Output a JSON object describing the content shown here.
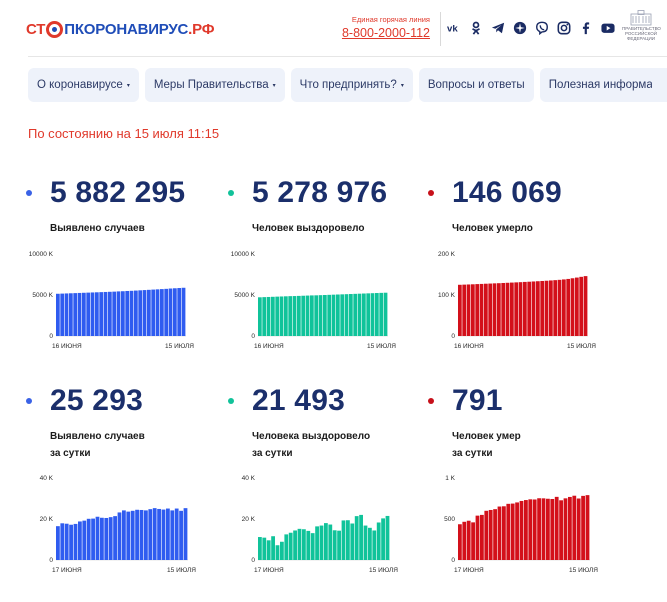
{
  "header": {
    "logo": {
      "stop": "СТ",
      "rest": "ПКОРОНАВИРУС",
      "tld": ".РФ"
    },
    "hotline_caption": "Единая горячая линия",
    "hotline_number": "8-800-2000-112",
    "socials": [
      "vk-icon",
      "odnoklassniki-icon",
      "telegram-icon",
      "yandex-zen-icon",
      "viber-icon",
      "instagram-icon",
      "facebook-icon",
      "youtube-icon"
    ],
    "gov_caption": "ПРАВИТЕЛЬСТВО РОССИЙСКОЙ ФЕДЕРАЦИИ"
  },
  "nav": [
    {
      "label": "О коронавирусе",
      "caret": "▾"
    },
    {
      "label": "Меры Правительства",
      "caret": "▾"
    },
    {
      "label": "Что предпринять?",
      "caret": "▾"
    },
    {
      "label": "Вопросы и ответы",
      "caret": ""
    },
    {
      "label": "Полезная информация",
      "caret": "▾"
    }
  ],
  "as_of": "По состоянию на 15 июля 11:15",
  "colors": {
    "blue": "#2f5cf0",
    "green": "#10c39a",
    "red": "#d3101a",
    "navy": "#1b2f6b",
    "accent": "#e0392b"
  },
  "stats": [
    {
      "value": "5 882 295",
      "label_lines": [
        "Выявлено случаев"
      ],
      "color": "#3a62e6"
    },
    {
      "value": "5 278 976",
      "label_lines": [
        "Человек выздоровело"
      ],
      "color": "#11c29a"
    },
    {
      "value": "146 069",
      "label_lines": [
        "Человек умерло"
      ],
      "color": "#c7101a"
    },
    {
      "value": "25 293",
      "label_lines": [
        "Выявлено случаев",
        "за сутки"
      ],
      "color": "#3a62e6"
    },
    {
      "value": "21 493",
      "label_lines": [
        "Человека выздоровело",
        "за сутки"
      ],
      "color": "#11c29a"
    },
    {
      "value": "791",
      "label_lines": [
        "Человек умер",
        "за сутки"
      ],
      "color": "#c7101a"
    }
  ],
  "chart_data": [
    {
      "type": "bar",
      "title": "Выявлено случаев",
      "color": "#2f5cf0",
      "y_ticks": [
        "10000 K",
        "5000 K",
        "0"
      ],
      "ylim": [
        0,
        10000000
      ],
      "x_labels": [
        "16 июня",
        "15 июля"
      ],
      "values": [
        5150000,
        5170000,
        5190000,
        5210000,
        5230000,
        5250000,
        5270000,
        5290000,
        5310000,
        5330000,
        5350000,
        5370000,
        5390000,
        5410000,
        5440000,
        5460000,
        5490000,
        5510000,
        5540000,
        5570000,
        5600000,
        5630000,
        5660000,
        5690000,
        5720000,
        5750000,
        5790000,
        5820000,
        5850000,
        5882295
      ]
    },
    {
      "type": "bar",
      "title": "Человек выздоровело",
      "color": "#10c39a",
      "y_ticks": [
        "10000 K",
        "5000 K",
        "0"
      ],
      "ylim": [
        0,
        10000000
      ],
      "x_labels": [
        "16 июня",
        "15 июля"
      ],
      "values": [
        4720000,
        4740000,
        4760000,
        4780000,
        4800000,
        4820000,
        4840000,
        4860000,
        4870000,
        4890000,
        4910000,
        4930000,
        4950000,
        4960000,
        4980000,
        5000000,
        5020000,
        5040000,
        5060000,
        5080000,
        5100000,
        5120000,
        5140000,
        5160000,
        5180000,
        5200000,
        5220000,
        5240000,
        5260000,
        5278976
      ]
    },
    {
      "type": "bar",
      "title": "Человек умерло",
      "color": "#d3101a",
      "y_ticks": [
        "200 K",
        "100 K",
        "0"
      ],
      "ylim": [
        0,
        200000
      ],
      "x_labels": [
        "16 июня",
        "15 июля"
      ],
      "values": [
        124900,
        125300,
        125700,
        126100,
        126600,
        127000,
        127500,
        127900,
        128400,
        128800,
        129300,
        129800,
        130300,
        130800,
        131300,
        131900,
        132400,
        133000,
        133600,
        134200,
        134800,
        135500,
        136200,
        137000,
        138000,
        139200,
        140800,
        142500,
        144300,
        146069
      ]
    },
    {
      "type": "bar",
      "title": "Выявлено случаев за сутки",
      "color": "#2f5cf0",
      "y_ticks": [
        "40 K",
        "20 K",
        "0"
      ],
      "ylim": [
        0,
        40000
      ],
      "x_labels": [
        "17 июня",
        "15 июля"
      ],
      "values": [
        16500,
        17900,
        17700,
        17200,
        17600,
        18800,
        19200,
        20100,
        20200,
        21100,
        20600,
        20500,
        20900,
        21400,
        23200,
        24200,
        23600,
        24000,
        24500,
        24400,
        24200,
        24800,
        25300,
        24900,
        24600,
        25100,
        24200,
        25100,
        24000,
        25293
      ]
    },
    {
      "type": "bar",
      "title": "Человека выздоровело за сутки",
      "color": "#10c39a",
      "y_ticks": [
        "40 K",
        "20 K",
        "0"
      ],
      "ylim": [
        0,
        40000
      ],
      "x_labels": [
        "17 июня",
        "15 июля"
      ],
      "values": [
        11200,
        10900,
        9600,
        11600,
        7200,
        8900,
        12500,
        13300,
        14400,
        15200,
        15000,
        14200,
        13100,
        16400,
        16800,
        18000,
        17300,
        14500,
        14300,
        19300,
        19400,
        17800,
        21400,
        22000,
        16800,
        15700,
        14400,
        18300,
        20300,
        21493
      ]
    },
    {
      "type": "bar",
      "title": "Человек умер за сутки",
      "color": "#d3101a",
      "y_ticks": [
        "1 K",
        "500",
        "0"
      ],
      "ylim": [
        0,
        1000
      ],
      "x_labels": [
        "17 июня",
        "15 июля"
      ],
      "values": [
        436,
        466,
        479,
        459,
        541,
        550,
        600,
        610,
        620,
        652,
        655,
        685,
        688,
        702,
        720,
        731,
        740,
        738,
        753,
        752,
        747,
        744,
        770,
        728,
        752,
        769,
        784,
        750,
        782,
        791
      ]
    }
  ]
}
